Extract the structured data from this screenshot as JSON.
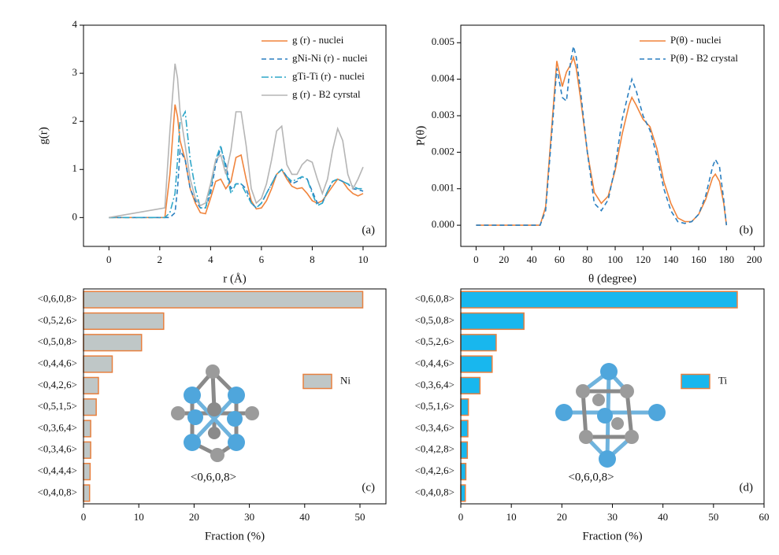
{
  "chart_data": [
    {
      "type": "line",
      "panel_label": "(a)",
      "xlabel": "r (Å)",
      "ylabel": "g(r)",
      "xlim": [
        -1,
        10.9
      ],
      "ylim": [
        -0.6,
        4
      ],
      "xticks": [
        0,
        2,
        4,
        6,
        8,
        10
      ],
      "yticks": [
        0,
        1,
        2,
        3,
        4
      ],
      "legend": "upper right",
      "x": [
        0,
        2.2,
        2.4,
        2.6,
        2.7,
        2.8,
        3.0,
        3.2,
        3.4,
        3.6,
        3.8,
        4.0,
        4.2,
        4.4,
        4.6,
        4.8,
        5.0,
        5.2,
        5.4,
        5.6,
        5.8,
        6.0,
        6.2,
        6.4,
        6.6,
        6.8,
        7.0,
        7.2,
        7.4,
        7.6,
        7.8,
        8.0,
        8.2,
        8.4,
        8.6,
        8.8,
        9.0,
        9.2,
        9.4,
        9.6,
        9.8,
        10.0
      ],
      "series": [
        {
          "name": "g (r) - nuclei",
          "color": "#f0843c",
          "line_style": "solid",
          "values": [
            0,
            0,
            0.9,
            2.35,
            2.1,
            1.6,
            1.2,
            0.6,
            0.3,
            0.1,
            0.08,
            0.4,
            0.75,
            0.8,
            0.6,
            0.75,
            1.25,
            1.3,
            0.8,
            0.35,
            0.18,
            0.2,
            0.35,
            0.6,
            0.9,
            1.0,
            0.8,
            0.65,
            0.6,
            0.62,
            0.5,
            0.35,
            0.3,
            0.35,
            0.5,
            0.65,
            0.8,
            0.75,
            0.6,
            0.5,
            0.45,
            0.5
          ]
        },
        {
          "name": "gNi-Ni (r) - nuclei",
          "color": "#2a7fc0",
          "line_style": "dashed",
          "values": [
            0,
            0,
            0,
            0.1,
            0.6,
            1.4,
            1.2,
            0.6,
            0.35,
            0.2,
            0.2,
            0.5,
            1.1,
            1.45,
            1.1,
            0.6,
            0.7,
            0.7,
            0.6,
            0.3,
            0.2,
            0.3,
            0.5,
            0.7,
            0.9,
            1.0,
            0.85,
            0.7,
            0.75,
            0.85,
            0.8,
            0.55,
            0.3,
            0.3,
            0.55,
            0.75,
            0.8,
            0.75,
            0.7,
            0.6,
            0.58,
            0.55
          ]
        },
        {
          "name": "gTi-Ti (r) - nuclei",
          "color": "#2fa7c9",
          "line_style": "dash-dot",
          "values": [
            0,
            0,
            0.1,
            0.5,
            1.2,
            2.0,
            2.2,
            1.2,
            0.6,
            0.2,
            0.2,
            0.6,
            1.2,
            1.5,
            1.0,
            0.5,
            0.7,
            0.7,
            0.5,
            0.3,
            0.2,
            0.3,
            0.5,
            0.7,
            0.9,
            1.0,
            0.85,
            0.75,
            0.8,
            0.85,
            0.8,
            0.5,
            0.25,
            0.3,
            0.55,
            0.75,
            0.8,
            0.75,
            0.7,
            0.65,
            0.6,
            0.6
          ]
        },
        {
          "name": "g (r) - B2 cyrstal",
          "color": "#b5b5b5",
          "line_style": "solid",
          "values": [
            0,
            0.2,
            1.8,
            3.2,
            2.9,
            2.2,
            1.5,
            0.8,
            0.4,
            0.25,
            0.3,
            0.7,
            1.2,
            1.3,
            0.9,
            1.4,
            2.2,
            2.2,
            1.5,
            0.6,
            0.3,
            0.4,
            0.7,
            1.2,
            1.8,
            1.9,
            1.1,
            0.9,
            0.9,
            1.1,
            1.2,
            1.15,
            0.8,
            0.5,
            0.8,
            1.4,
            1.85,
            1.6,
            0.9,
            0.6,
            0.8,
            1.05
          ]
        }
      ]
    },
    {
      "type": "line",
      "panel_label": "(b)",
      "xlabel": "θ (degree)",
      "ylabel": "P(θ)",
      "xlim": [
        -11,
        207
      ],
      "ylim": [
        -0.00058,
        0.00548
      ],
      "xticks": [
        0,
        20,
        40,
        60,
        80,
        100,
        120,
        140,
        160,
        180,
        200
      ],
      "yticks": [
        {
          "value": 0,
          "label": "0.000"
        },
        0.001,
        0.002,
        0.003,
        0.004,
        0.005
      ],
      "legend": "upper right",
      "x": [
        0,
        20,
        40,
        46,
        50,
        55,
        58,
        62,
        65,
        68,
        70,
        72,
        75,
        80,
        85,
        90,
        95,
        100,
        105,
        110,
        112,
        115,
        120,
        125,
        130,
        135,
        140,
        145,
        150,
        155,
        160,
        165,
        170,
        172,
        175,
        178,
        180
      ],
      "series": [
        {
          "name": "P(θ) - nuclei",
          "color": "#f0843c",
          "line_style": "solid",
          "values": [
            0,
            0,
            0,
            0,
            0.0005,
            0.003,
            0.0045,
            0.0038,
            0.0042,
            0.0044,
            0.0046,
            0.0043,
            0.0035,
            0.002,
            0.0009,
            0.0006,
            0.0008,
            0.0015,
            0.0025,
            0.0033,
            0.0035,
            0.0033,
            0.0029,
            0.0027,
            0.0021,
            0.0012,
            0.0006,
            0.0002,
            0.0001,
            0.0001,
            0.0003,
            0.0007,
            0.0013,
            0.0014,
            0.0012,
            0.0006,
            0
          ]
        },
        {
          "name": "P(θ) - B2 crystal",
          "color": "#2a7fc0",
          "line_style": "dashed",
          "values": [
            0,
            0,
            0,
            0,
            0.0004,
            0.0028,
            0.0043,
            0.0035,
            0.0034,
            0.0045,
            0.0049,
            0.0046,
            0.0037,
            0.002,
            0.0006,
            0.0004,
            0.0007,
            0.0016,
            0.0029,
            0.0037,
            0.004,
            0.0037,
            0.003,
            0.0026,
            0.0019,
            0.001,
            0.0004,
            0.0001,
            5e-05,
            0.0001,
            0.0003,
            0.0008,
            0.0016,
            0.0018,
            0.0016,
            0.0007,
            0
          ]
        }
      ]
    },
    {
      "type": "barh",
      "panel_label": "(c)",
      "xlabel": "Fraction (%)",
      "inset_label": "<0,6,0,8>",
      "legend": "center right",
      "xlim": [
        0,
        54.7
      ],
      "xticks": [
        0,
        10,
        20,
        30,
        40,
        50
      ],
      "categories": [
        "<0,6,0,8>",
        "<0,5,2,6>",
        "<0,5,0,8>",
        "<0,4,4,6>",
        "<0,4,2,6>",
        "<0,5,1,5>",
        "<0,3,6,4>",
        "<0,3,4,6>",
        "<0,4,4,4>",
        "<0,4,0,8>"
      ],
      "series": [
        {
          "name": "Ni",
          "color": "#bfc7c7",
          "edge_color": "#e8803f",
          "values": [
            50.5,
            14.5,
            10.5,
            5.2,
            2.7,
            2.3,
            1.3,
            1.3,
            1.2,
            1.1
          ]
        }
      ]
    },
    {
      "type": "barh",
      "panel_label": "(d)",
      "xlabel": "Fraction (%)",
      "inset_label": "<0,6,0,8>",
      "legend": "center right",
      "xlim": [
        0,
        60
      ],
      "xticks": [
        0,
        10,
        20,
        30,
        40,
        50,
        60
      ],
      "categories": [
        "<0,6,0,8>",
        "<0,5,0,8>",
        "<0,5,2,6>",
        "<0,4,4,6>",
        "<0,3,6,4>",
        "<0,5,1,6>",
        "<0,3,4,6>",
        "<0,4,2,8>",
        "<0,4,2,6>",
        "<0,4,0,8>"
      ],
      "series": [
        {
          "name": "Ti",
          "color": "#18b7ee",
          "edge_color": "#e8803f",
          "values": [
            54.7,
            12.5,
            7.0,
            6.2,
            3.8,
            1.5,
            1.4,
            1.3,
            1.0,
            0.9
          ]
        }
      ]
    }
  ]
}
